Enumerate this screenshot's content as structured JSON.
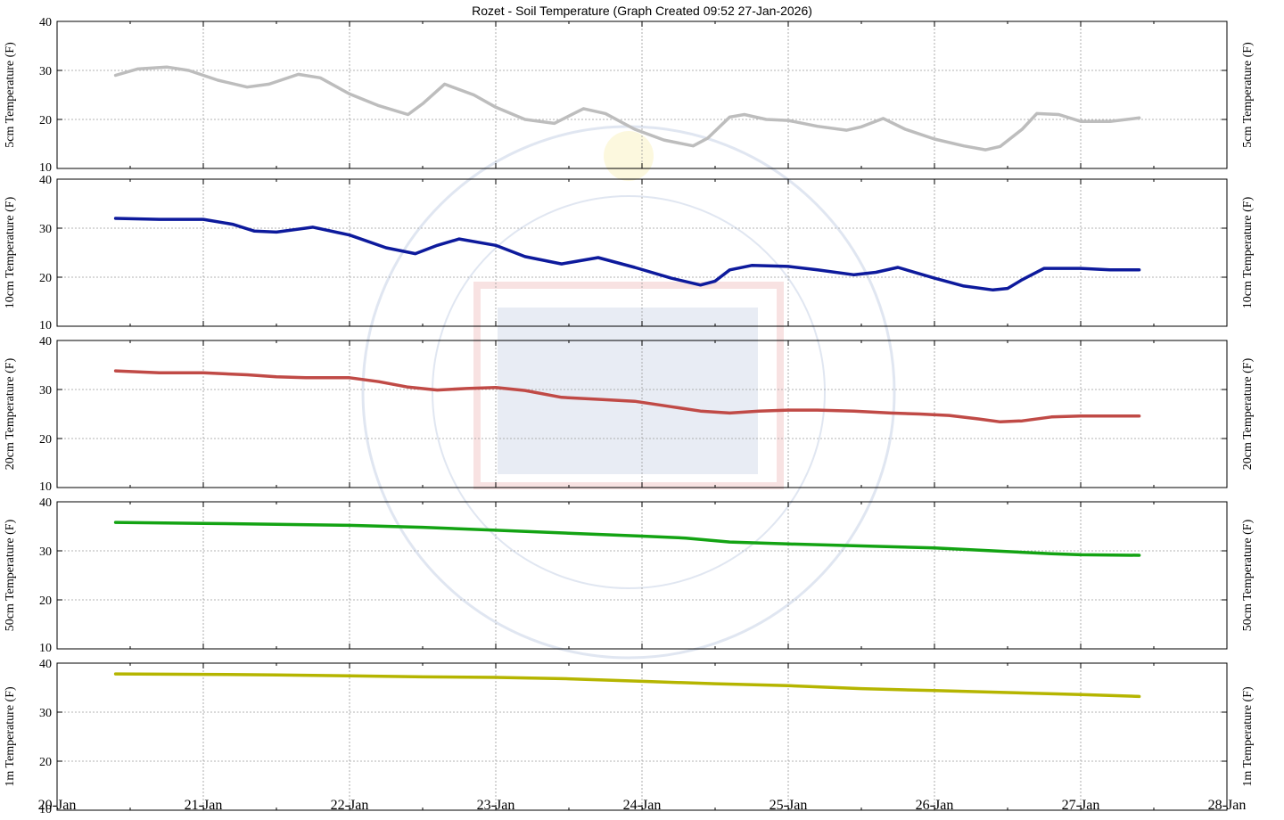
{
  "chart_data": {
    "type": "line",
    "title": "Rozet - Soil Temperature (Graph Created 09:52 27-Jan-2026)",
    "x_range": [
      "20-Jan",
      "28-Jan"
    ],
    "x_tick_labels": [
      "20-Jan",
      "21-Jan",
      "22-Jan",
      "23-Jan",
      "24-Jan",
      "25-Jan",
      "26-Jan",
      "27-Jan",
      "28-Jan"
    ],
    "x_unit": "days since 20-Jan",
    "grid": true,
    "panels": [
      {
        "ylabel": "5cm Temperature (F)",
        "ylim": [
          10,
          40
        ],
        "y_ticks": [
          "10",
          "20",
          "30",
          "40"
        ],
        "color": "#bdbdbd",
        "x": [
          0.4,
          0.55,
          0.75,
          0.9,
          1.1,
          1.3,
          1.45,
          1.65,
          1.8,
          2.0,
          2.2,
          2.4,
          2.5,
          2.65,
          2.85,
          3.0,
          3.2,
          3.4,
          3.6,
          3.75,
          3.95,
          4.15,
          4.35,
          4.45,
          4.6,
          4.7,
          4.85,
          5.0,
          5.2,
          5.4,
          5.5,
          5.65,
          5.8,
          6.0,
          6.2,
          6.35,
          6.45,
          6.6,
          6.7,
          6.85,
          7.0,
          7.2,
          7.4
        ],
        "values": [
          29,
          30.3,
          30.7,
          30,
          28,
          26.6,
          27.2,
          29.2,
          28.5,
          25.2,
          22.8,
          21.0,
          23.2,
          27.2,
          25.0,
          22.5,
          20.0,
          19.2,
          22.2,
          21.2,
          18.0,
          15.8,
          14.6,
          16.2,
          20.5,
          21.0,
          20.0,
          19.8,
          18.6,
          17.8,
          18.5,
          20.2,
          18.0,
          16.0,
          14.6,
          13.8,
          14.5,
          18.0,
          21.2,
          21.0,
          19.6,
          19.6,
          20.3
        ]
      },
      {
        "ylabel": "10cm Temperature (F)",
        "ylim": [
          10,
          40
        ],
        "y_ticks": [
          "10",
          "20",
          "30",
          "40"
        ],
        "color": "#0d1a9c",
        "x": [
          0.4,
          0.7,
          1.0,
          1.2,
          1.35,
          1.5,
          1.75,
          2.0,
          2.25,
          2.45,
          2.6,
          2.75,
          3.0,
          3.2,
          3.45,
          3.7,
          3.95,
          4.2,
          4.4,
          4.5,
          4.6,
          4.75,
          5.0,
          5.2,
          5.45,
          5.6,
          5.75,
          6.0,
          6.2,
          6.4,
          6.5,
          6.6,
          6.75,
          7.0,
          7.2,
          7.4
        ],
        "values": [
          32,
          31.8,
          31.8,
          30.8,
          29.4,
          29.2,
          30.2,
          28.6,
          26.0,
          24.8,
          26.5,
          27.8,
          26.5,
          24.2,
          22.7,
          24.0,
          22.0,
          19.8,
          18.4,
          19.2,
          21.5,
          22.4,
          22.2,
          21.5,
          20.5,
          21.0,
          22.0,
          19.8,
          18.2,
          17.4,
          17.7,
          19.5,
          21.8,
          21.8,
          21.5,
          21.5
        ]
      },
      {
        "ylabel": "20cm Temperature (F)",
        "ylim": [
          10,
          40
        ],
        "y_ticks": [
          "10",
          "20",
          "30",
          "40"
        ],
        "color": "#c04a46",
        "x": [
          0.4,
          0.7,
          1.0,
          1.3,
          1.5,
          1.7,
          2.0,
          2.2,
          2.4,
          2.6,
          2.8,
          3.0,
          3.2,
          3.45,
          3.7,
          3.95,
          4.2,
          4.4,
          4.6,
          4.8,
          5.0,
          5.2,
          5.45,
          5.7,
          5.9,
          6.1,
          6.3,
          6.45,
          6.6,
          6.8,
          7.0,
          7.4
        ],
        "values": [
          33.8,
          33.4,
          33.4,
          33.0,
          32.6,
          32.4,
          32.4,
          31.6,
          30.5,
          29.9,
          30.2,
          30.4,
          29.8,
          28.4,
          28.0,
          27.6,
          26.5,
          25.6,
          25.2,
          25.6,
          25.8,
          25.8,
          25.6,
          25.2,
          25.0,
          24.7,
          24.0,
          23.4,
          23.6,
          24.4,
          24.6,
          24.6
        ]
      },
      {
        "ylabel": "50cm Temperature (F)",
        "ylim": [
          10,
          40
        ],
        "y_ticks": [
          "10",
          "20",
          "30",
          "40"
        ],
        "color": "#13a313",
        "x": [
          0.4,
          1.0,
          1.5,
          2.0,
          2.5,
          3.0,
          3.5,
          4.0,
          4.3,
          4.6,
          5.0,
          5.5,
          6.0,
          6.4,
          6.8,
          7.0,
          7.4
        ],
        "values": [
          35.8,
          35.6,
          35.4,
          35.2,
          34.8,
          34.2,
          33.6,
          33.0,
          32.6,
          31.8,
          31.4,
          31.0,
          30.6,
          30.0,
          29.4,
          29.2,
          29.1
        ]
      },
      {
        "ylabel": "1m Temperature (F)",
        "ylim": [
          10,
          40
        ],
        "y_ticks": [
          "10",
          "20",
          "30",
          "40"
        ],
        "color": "#b5b500",
        "x": [
          0.4,
          1.0,
          1.5,
          2.0,
          2.5,
          3.0,
          3.5,
          4.0,
          4.5,
          5.0,
          5.5,
          6.0,
          6.5,
          7.0,
          7.4
        ],
        "values": [
          37.8,
          37.7,
          37.6,
          37.4,
          37.2,
          37.1,
          36.8,
          36.3,
          35.8,
          35.4,
          34.8,
          34.4,
          34.0,
          33.6,
          33.2
        ]
      }
    ]
  }
}
